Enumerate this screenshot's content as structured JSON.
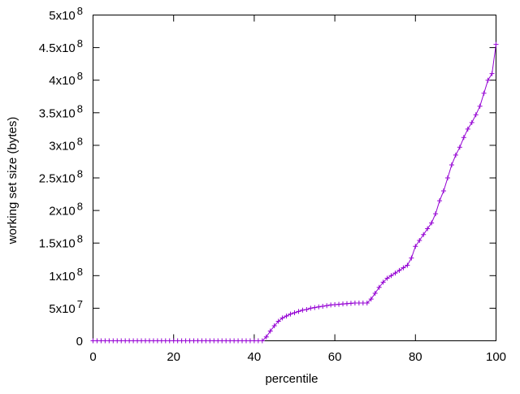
{
  "chart_data": {
    "type": "line",
    "title": "",
    "xlabel": "percentile",
    "ylabel": "working set size (bytes)",
    "xlim": [
      0,
      100
    ],
    "ylim": [
      0,
      500000000
    ],
    "grid": false,
    "legend": "none",
    "x_ticks": [
      {
        "value": 0,
        "label": "0"
      },
      {
        "value": 20,
        "label": "20"
      },
      {
        "value": 40,
        "label": "40"
      },
      {
        "value": 60,
        "label": "60"
      },
      {
        "value": 80,
        "label": "80"
      },
      {
        "value": 100,
        "label": "100"
      }
    ],
    "y_ticks": [
      {
        "value": 0,
        "label": "0",
        "exp": ""
      },
      {
        "value": 50000000,
        "label": "5x10",
        "exp": "7"
      },
      {
        "value": 100000000,
        "label": "1x10",
        "exp": "8"
      },
      {
        "value": 150000000,
        "label": "1.5x10",
        "exp": "8"
      },
      {
        "value": 200000000,
        "label": "2x10",
        "exp": "8"
      },
      {
        "value": 250000000,
        "label": "2.5x10",
        "exp": "8"
      },
      {
        "value": 300000000,
        "label": "3x10",
        "exp": "8"
      },
      {
        "value": 350000000,
        "label": "3.5x10",
        "exp": "8"
      },
      {
        "value": 400000000,
        "label": "4x10",
        "exp": "8"
      },
      {
        "value": 450000000,
        "label": "4.5x10",
        "exp": "8"
      },
      {
        "value": 500000000,
        "label": "5x10",
        "exp": "8"
      }
    ],
    "series": [
      {
        "color": "#9400d3",
        "marker": "plus",
        "x": [
          0,
          1,
          2,
          3,
          4,
          5,
          6,
          7,
          8,
          9,
          10,
          11,
          12,
          13,
          14,
          15,
          16,
          17,
          18,
          19,
          20,
          21,
          22,
          23,
          24,
          25,
          26,
          27,
          28,
          29,
          30,
          31,
          32,
          33,
          34,
          35,
          36,
          37,
          38,
          39,
          40,
          41,
          42,
          43,
          44,
          45,
          46,
          47,
          48,
          49,
          50,
          51,
          52,
          53,
          54,
          55,
          56,
          57,
          58,
          59,
          60,
          61,
          62,
          63,
          64,
          65,
          66,
          67,
          68,
          69,
          70,
          71,
          72,
          73,
          74,
          75,
          76,
          77,
          78,
          79,
          80,
          81,
          82,
          83,
          84,
          85,
          86,
          87,
          88,
          89,
          90,
          91,
          92,
          93,
          94,
          95,
          96,
          97,
          98,
          99,
          100
        ],
        "values": [
          0,
          0,
          0,
          0,
          0,
          0,
          0,
          0,
          0,
          0,
          0,
          0,
          0,
          0,
          0,
          0,
          0,
          0,
          0,
          0,
          0,
          0,
          0,
          0,
          0,
          0,
          0,
          0,
          0,
          0,
          0,
          0,
          0,
          0,
          0,
          0,
          0,
          0,
          0,
          0,
          0,
          0,
          0,
          6000000,
          15000000,
          23000000,
          30000000,
          35000000,
          38000000,
          41000000,
          43000000,
          45000000,
          47000000,
          48000000,
          50000000,
          51000000,
          52000000,
          53000000,
          54000000,
          55000000,
          55500000,
          56000000,
          56500000,
          57000000,
          57500000,
          58000000,
          58000000,
          58000000,
          58000000,
          64000000,
          73000000,
          82000000,
          90000000,
          96000000,
          100000000,
          104000000,
          108000000,
          112000000,
          116000000,
          127000000,
          145000000,
          154000000,
          163000000,
          172000000,
          181000000,
          195000000,
          215000000,
          230000000,
          250000000,
          270000000,
          285000000,
          297000000,
          312000000,
          325000000,
          335000000,
          347000000,
          360000000,
          380000000,
          400000000,
          410000000,
          455000000
        ]
      }
    ]
  }
}
